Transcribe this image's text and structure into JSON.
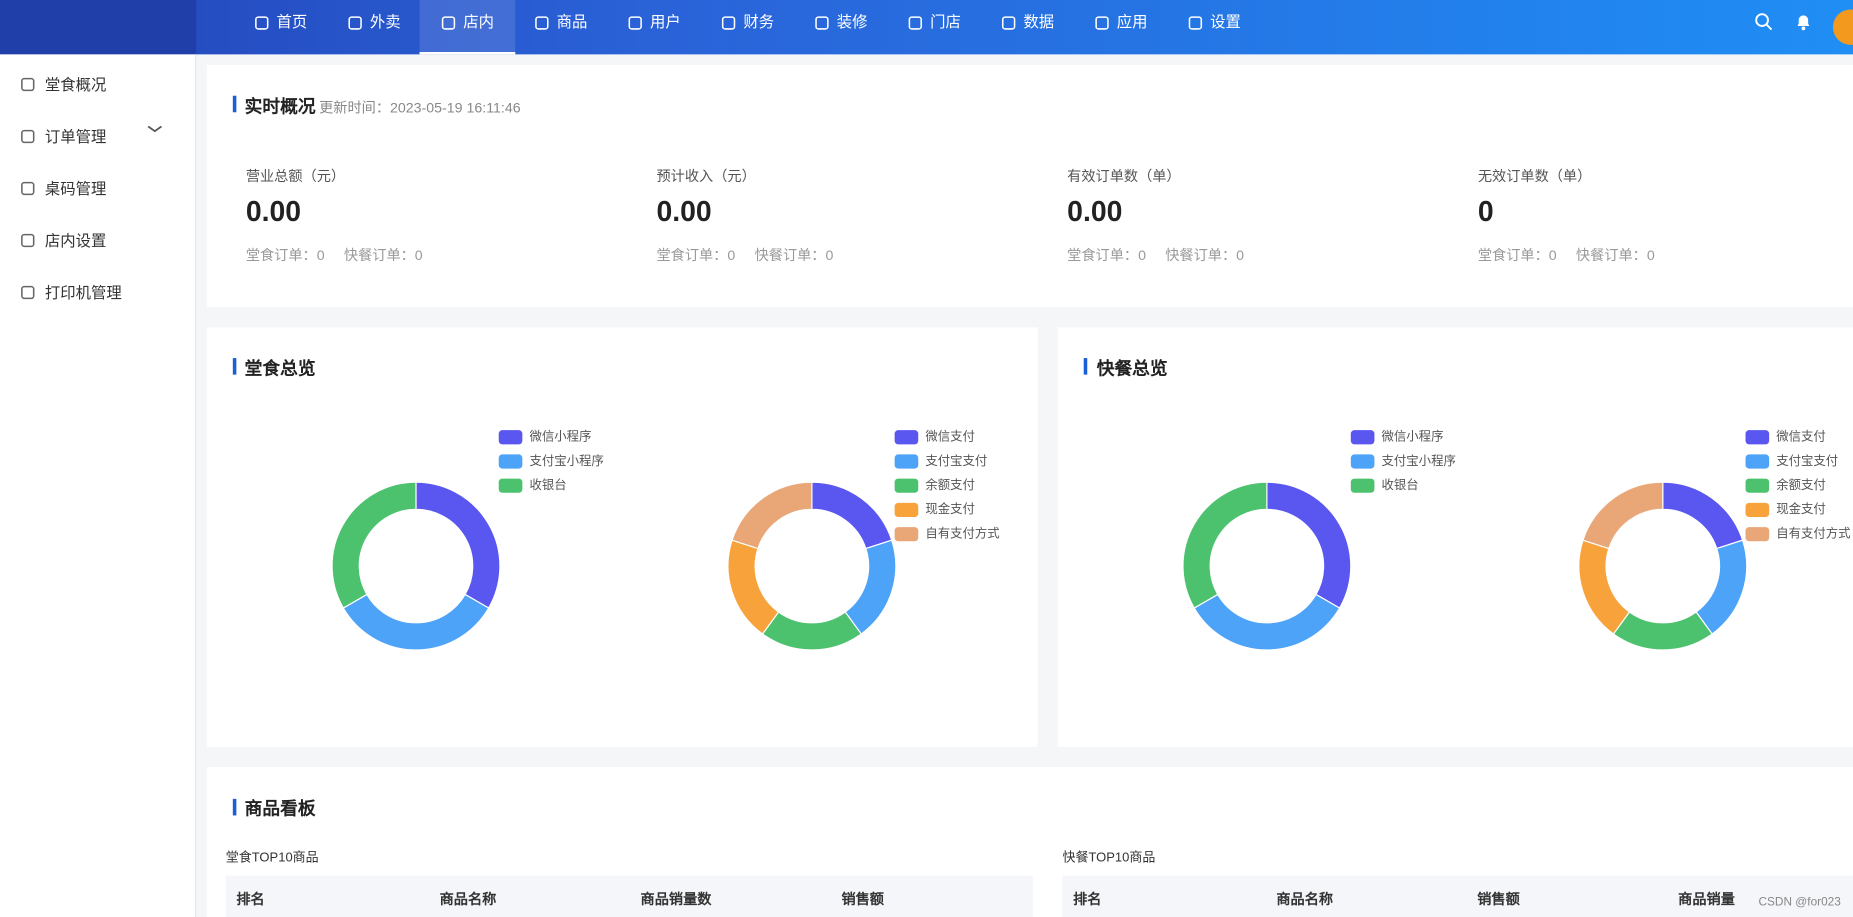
{
  "nav": [
    {
      "label": "首页"
    },
    {
      "label": "外卖"
    },
    {
      "label": "店内",
      "active": true
    },
    {
      "label": "商品"
    },
    {
      "label": "用户"
    },
    {
      "label": "财务"
    },
    {
      "label": "装修"
    },
    {
      "label": "门店"
    },
    {
      "label": "数据"
    },
    {
      "label": "应用"
    },
    {
      "label": "设置"
    }
  ],
  "sidebar": [
    "堂食概况",
    "订单管理",
    "桌码管理",
    "店内设置",
    "打印机管理"
  ],
  "realtime": {
    "title": "实时概况",
    "updated": "更新时间：2023-05-19 16:11:46",
    "stats": [
      {
        "label": "营业总额（元）",
        "value": "0.00",
        "dine_in": "堂食订单：0",
        "fast": "快餐订单：0"
      },
      {
        "label": "预计收入（元）",
        "value": "0.00",
        "dine_in": "堂食订单：0",
        "fast": "快餐订单：0"
      },
      {
        "label": "有效订单数（单）",
        "value": "0.00",
        "dine_in": "堂食订单：0",
        "fast": "快餐订单：0"
      },
      {
        "label": "无效订单数（单）",
        "value": "0",
        "dine_in": "堂食订单：0",
        "fast": "快餐订单：0"
      }
    ]
  },
  "panels": [
    "堂食总览",
    "快餐总览"
  ],
  "chart_data": [
    {
      "type": "pie",
      "categories": [
        "微信小程序",
        "支付宝小程序",
        "收银台"
      ],
      "values": [
        1,
        1,
        1
      ],
      "colors": [
        "#5a56f0",
        "#4da3f7",
        "#4cc26e"
      ]
    },
    {
      "type": "pie",
      "categories": [
        "微信支付",
        "支付宝支付",
        "余额支付",
        "现金支付",
        "自有支付方式"
      ],
      "values": [
        1,
        1,
        1,
        1,
        1
      ],
      "colors": [
        "#5a56f0",
        "#4da3f7",
        "#4cc26e",
        "#f7a23a",
        "#e9a677"
      ]
    },
    {
      "type": "pie",
      "categories": [
        "微信小程序",
        "支付宝小程序",
        "收银台"
      ],
      "values": [
        1,
        1,
        1
      ],
      "colors": [
        "#5a56f0",
        "#4da3f7",
        "#4cc26e"
      ]
    },
    {
      "type": "pie",
      "categories": [
        "微信支付",
        "支付宝支付",
        "余额支付",
        "现金支付",
        "自有支付方式"
      ],
      "values": [
        1,
        1,
        1,
        1,
        1
      ],
      "colors": [
        "#5a56f0",
        "#4da3f7",
        "#4cc26e",
        "#f7a23a",
        "#e9a677"
      ]
    }
  ],
  "goods": {
    "title": "商品看板",
    "tables": [
      {
        "title": "堂食TOP10商品",
        "headers": [
          "排名",
          "商品名称",
          "商品销量数",
          "销售额"
        ]
      },
      {
        "title": "快餐TOP10商品",
        "headers": [
          "排名",
          "商品名称",
          "销售额",
          "商品销量"
        ]
      }
    ]
  },
  "watermark": "CSDN @for023"
}
